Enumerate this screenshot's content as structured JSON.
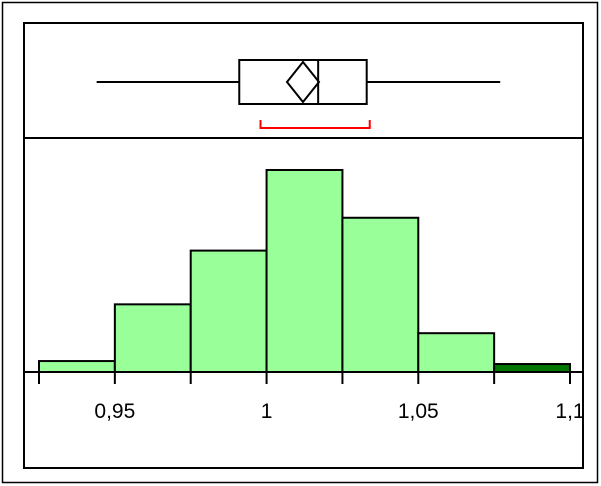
{
  "chart_data": {
    "type": "bar",
    "title": "",
    "xlabel": "",
    "ylabel": "",
    "xlim": [
      0.925,
      1.1
    ],
    "ylim": [
      0,
      11
    ],
    "bins": [
      {
        "from": 0.925,
        "to": 0.95,
        "count": 0.55,
        "color": "#99ff99"
      },
      {
        "from": 0.95,
        "to": 0.975,
        "count": 3.4,
        "color": "#99ff99"
      },
      {
        "from": 0.975,
        "to": 1.0,
        "count": 6.1,
        "color": "#99ff99"
      },
      {
        "from": 1.0,
        "to": 1.025,
        "count": 10.15,
        "color": "#99ff99"
      },
      {
        "from": 1.025,
        "to": 1.05,
        "count": 7.75,
        "color": "#99ff99"
      },
      {
        "from": 1.05,
        "to": 1.075,
        "count": 1.95,
        "color": "#99ff99"
      },
      {
        "from": 1.075,
        "to": 1.1,
        "count": 0.4,
        "color": "#007700"
      }
    ],
    "x_tick_values": [
      0.925,
      0.95,
      0.975,
      1.0,
      1.025,
      1.05,
      1.075,
      1.1
    ],
    "x_tick_labels": [
      {
        "value": 0.95,
        "label": "0,95"
      },
      {
        "value": 1.0,
        "label": "1"
      },
      {
        "value": 1.05,
        "label": "1,05"
      },
      {
        "value": 1.1,
        "label": "1,1"
      }
    ],
    "boxplot": {
      "whisker_low": 0.944,
      "q1": 0.991,
      "median": 1.017,
      "q3": 1.033,
      "whisker_high": 1.077,
      "mean": 1.012,
      "mean_confidence_interval": [
        0.998,
        1.034
      ]
    },
    "grid": false,
    "legend": "none",
    "colors": {
      "bar_fill": "#99ff99",
      "highlight_bar_fill": "#007700",
      "interval_color": "#ff0000",
      "outline": "#000000"
    }
  }
}
